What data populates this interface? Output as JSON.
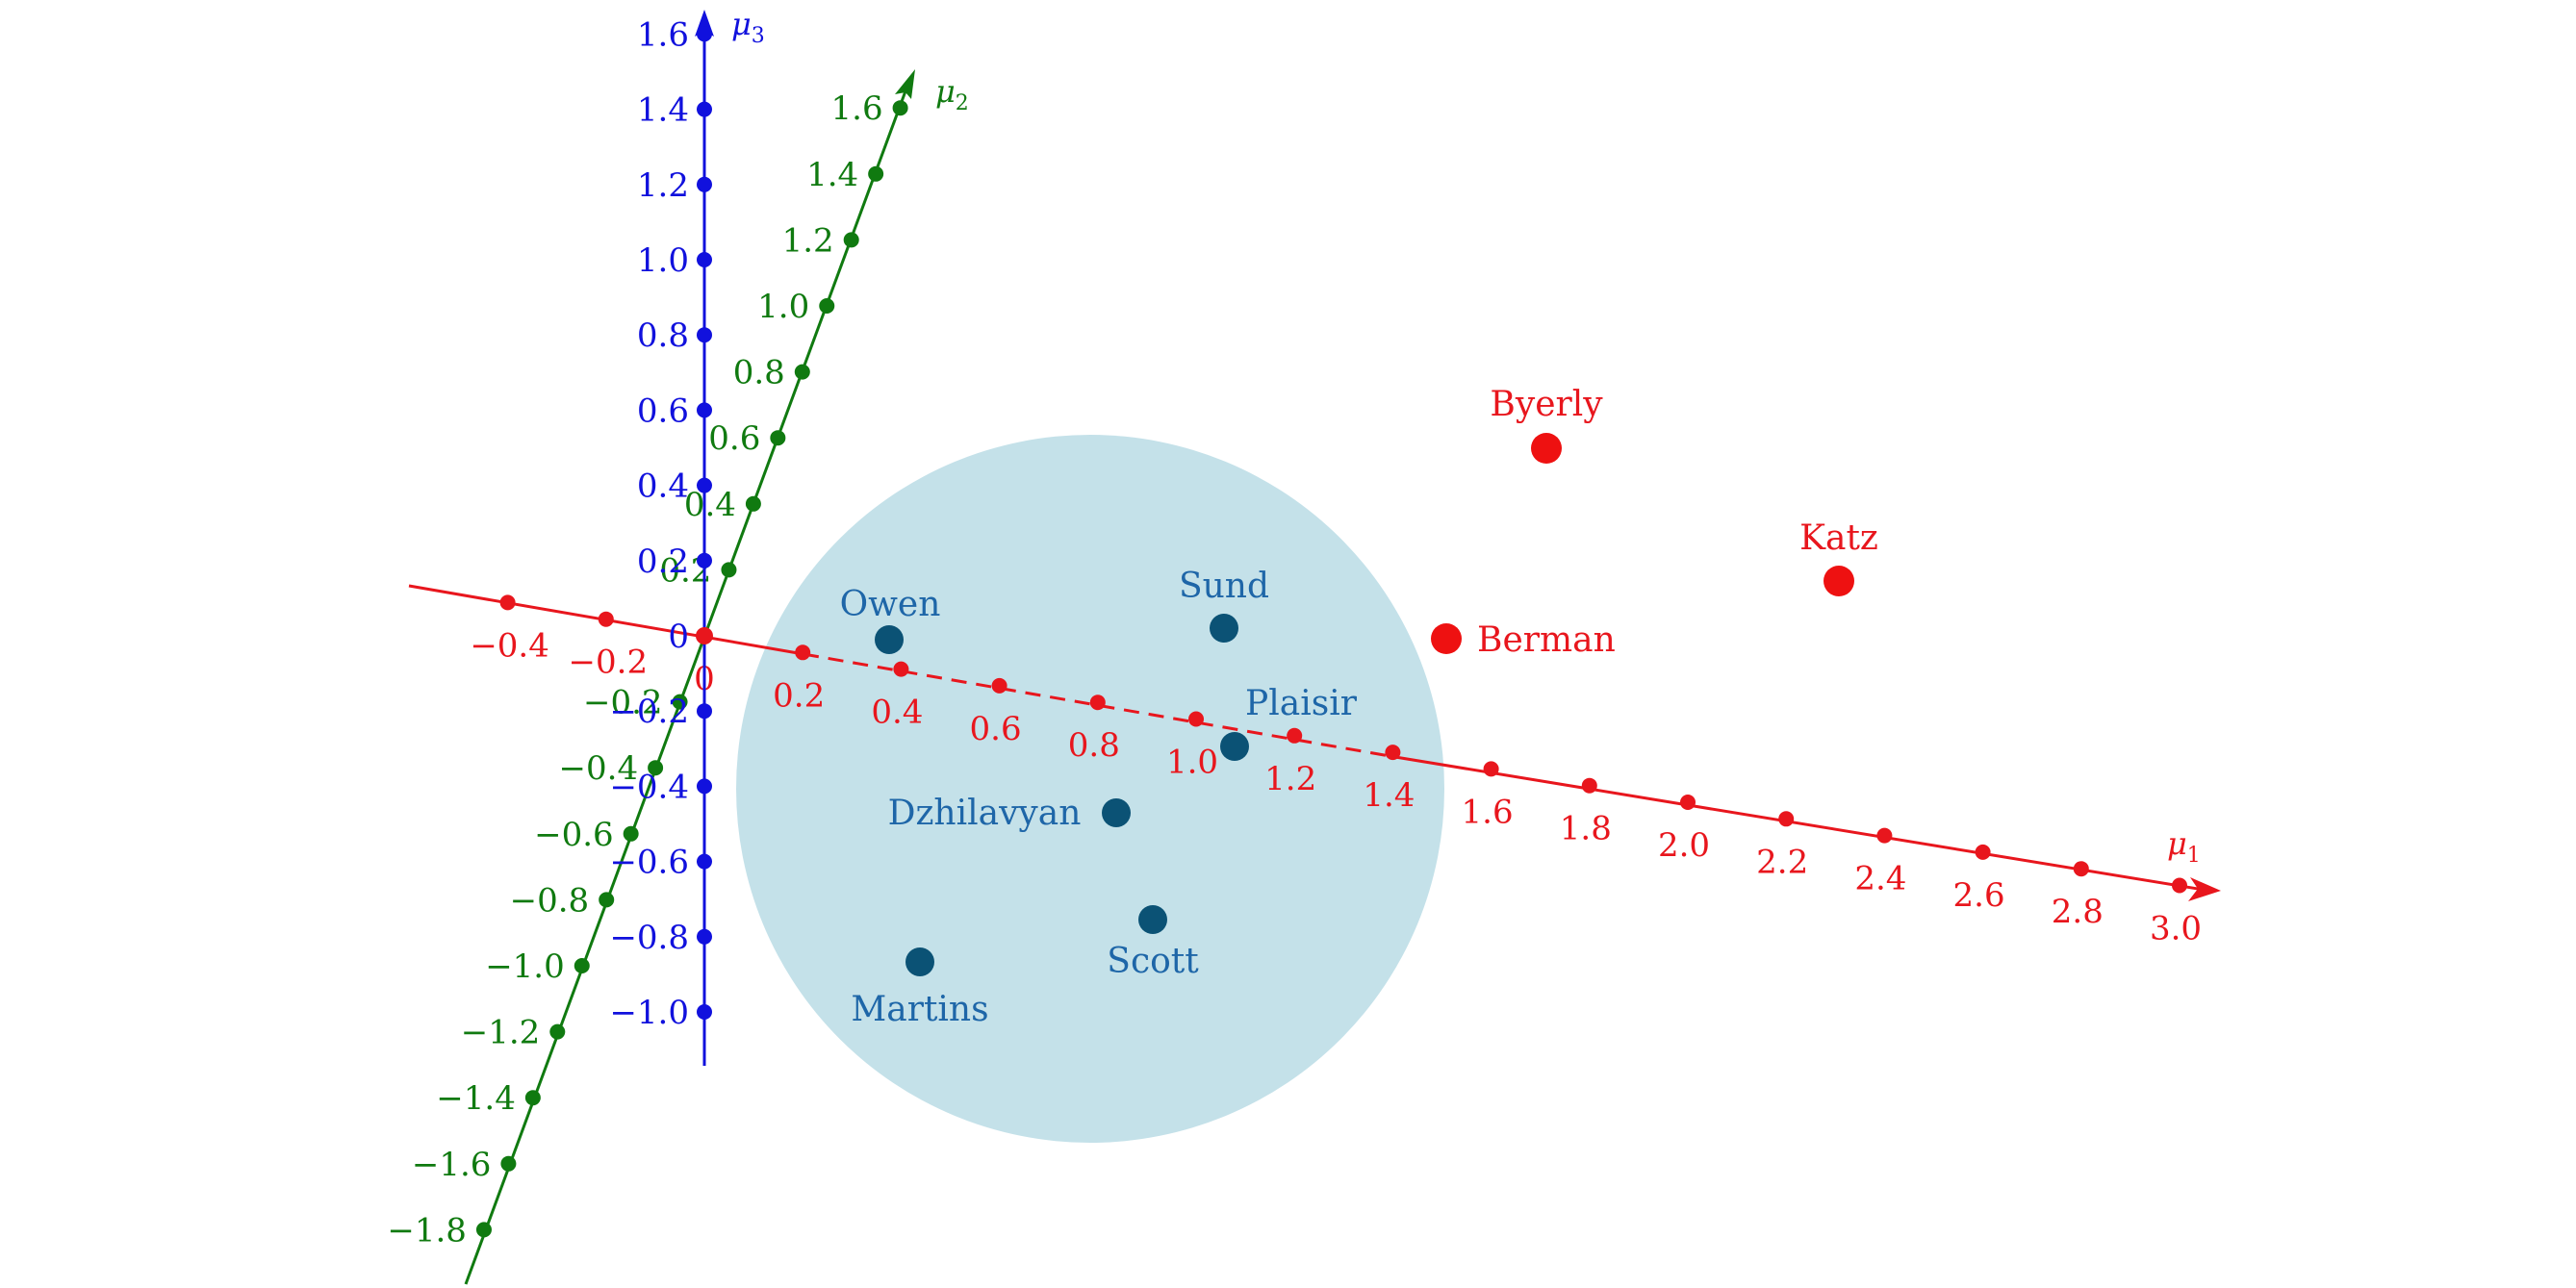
{
  "axes": {
    "mu1": {
      "name": "μ",
      "subscript": "1",
      "color": "#e8161d",
      "ticks": [
        "−0.4",
        "−0.2",
        "0",
        "0.2",
        "0.4",
        "0.6",
        "0.8",
        "1.0",
        "1.2",
        "1.4",
        "1.6",
        "1.8",
        "2.0",
        "2.2",
        "2.4",
        "2.6",
        "2.8",
        "3.0"
      ]
    },
    "mu2": {
      "name": "μ",
      "subscript": "2",
      "color": "#107a10",
      "ticks": [
        "−1.8",
        "−1.6",
        "−1.4",
        "−1.2",
        "−1.0",
        "−0.8",
        "−0.6",
        "−0.4",
        "−0.2",
        "0.2",
        "0.4",
        "0.6",
        "0.8",
        "1.0",
        "1.2",
        "1.4",
        "1.6"
      ]
    },
    "mu3": {
      "name": "μ",
      "subscript": "3",
      "color": "#1111dd",
      "ticks": [
        "−1.0",
        "−0.8",
        "−0.6",
        "−0.4",
        "−0.2",
        "0",
        "0.2",
        "0.4",
        "0.6",
        "0.8",
        "1.0",
        "1.2",
        "1.4",
        "1.6"
      ]
    }
  },
  "region": {
    "color": "#c4e1e9"
  },
  "inside_points": {
    "color": "#0b5275",
    "label_color": "#1e66a8",
    "labels": [
      "Owen",
      "Sund",
      "Plaisir",
      "Dzhilavyan",
      "Scott",
      "Martins"
    ]
  },
  "outside_points": {
    "color": "#ee1111",
    "labels": [
      "Byerly",
      "Katz",
      "Berman"
    ]
  }
}
